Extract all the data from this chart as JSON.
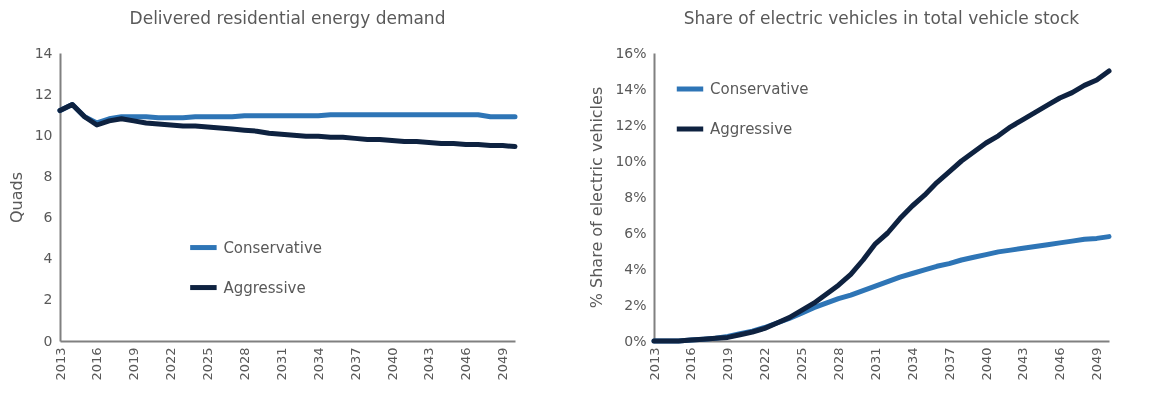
{
  "chart_data": [
    {
      "type": "line",
      "title": "Delivered residential energy demand",
      "ylabel": "Quads",
      "x": [
        2013,
        2014,
        2015,
        2016,
        2017,
        2018,
        2019,
        2020,
        2021,
        2022,
        2023,
        2024,
        2025,
        2026,
        2027,
        2028,
        2029,
        2030,
        2031,
        2032,
        2033,
        2034,
        2035,
        2036,
        2037,
        2038,
        2039,
        2040,
        2041,
        2042,
        2043,
        2044,
        2045,
        2046,
        2047,
        2048,
        2049,
        2050
      ],
      "series": [
        {
          "name": "Conservative",
          "color": "#2e75b6",
          "values": [
            11.2,
            11.5,
            10.9,
            10.6,
            10.8,
            10.9,
            10.9,
            10.9,
            10.85,
            10.85,
            10.85,
            10.9,
            10.9,
            10.9,
            10.9,
            10.95,
            10.95,
            10.95,
            10.95,
            10.95,
            10.95,
            10.95,
            11.0,
            11.0,
            11.0,
            11.0,
            11.0,
            11.0,
            11.0,
            11.0,
            11.0,
            11.0,
            11.0,
            11.0,
            11.0,
            10.9,
            10.9,
            10.9
          ]
        },
        {
          "name": "Aggressive",
          "color": "#0e2240",
          "values": [
            11.2,
            11.5,
            10.9,
            10.5,
            10.7,
            10.8,
            10.7,
            10.6,
            10.55,
            10.5,
            10.45,
            10.45,
            10.4,
            10.35,
            10.3,
            10.25,
            10.2,
            10.1,
            10.05,
            10.0,
            9.95,
            9.95,
            9.9,
            9.9,
            9.85,
            9.8,
            9.8,
            9.75,
            9.7,
            9.7,
            9.65,
            9.6,
            9.6,
            9.55,
            9.55,
            9.5,
            9.5,
            9.45
          ]
        }
      ],
      "xlim": [
        2013,
        2050
      ],
      "xticks": [
        2013,
        2016,
        2019,
        2022,
        2025,
        2028,
        2031,
        2034,
        2037,
        2040,
        2043,
        2046,
        2049
      ],
      "ylim": [
        0,
        14
      ],
      "yticks": [
        0,
        2,
        4,
        6,
        8,
        10,
        12,
        14
      ],
      "grid": false,
      "legend": "bottom",
      "marker": "none",
      "line_style": "solid"
    },
    {
      "type": "line",
      "title": "Share of electric vehicles in total vehicle stock",
      "ylabel": "% Share of electric vehicles",
      "x": [
        2013,
        2014,
        2015,
        2016,
        2017,
        2018,
        2019,
        2020,
        2021,
        2022,
        2023,
        2024,
        2025,
        2026,
        2027,
        2028,
        2029,
        2030,
        2031,
        2032,
        2033,
        2034,
        2035,
        2036,
        2037,
        2038,
        2039,
        2040,
        2041,
        2042,
        2043,
        2044,
        2045,
        2046,
        2047,
        2048,
        2049,
        2050
      ],
      "series": [
        {
          "name": "Conservative",
          "color": "#2e75b6",
          "values": [
            0,
            0,
            0,
            0.05,
            0.1,
            0.15,
            0.25,
            0.4,
            0.55,
            0.75,
            1.0,
            1.25,
            1.55,
            1.85,
            2.1,
            2.35,
            2.55,
            2.8,
            3.05,
            3.3,
            3.55,
            3.75,
            3.95,
            4.15,
            4.3,
            4.5,
            4.65,
            4.8,
            4.95,
            5.05,
            5.15,
            5.25,
            5.35,
            5.45,
            5.55,
            5.65,
            5.7,
            5.8
          ]
        },
        {
          "name": "Aggressive",
          "color": "#0e2240",
          "values": [
            0,
            0,
            0,
            0.05,
            0.1,
            0.15,
            0.2,
            0.35,
            0.5,
            0.7,
            1.0,
            1.3,
            1.7,
            2.1,
            2.6,
            3.1,
            3.7,
            4.5,
            5.4,
            6.0,
            6.8,
            7.5,
            8.1,
            8.8,
            9.4,
            10.0,
            10.5,
            11.0,
            11.4,
            11.9,
            12.3,
            12.7,
            13.1,
            13.5,
            13.8,
            14.2,
            14.5,
            15.0
          ]
        }
      ],
      "xlim": [
        2013,
        2050
      ],
      "xticks": [
        2013,
        2016,
        2019,
        2022,
        2025,
        2028,
        2031,
        2034,
        2037,
        2040,
        2043,
        2046,
        2049
      ],
      "ylim": [
        0,
        16
      ],
      "yticks": [
        {
          "value": 0,
          "label": "0%"
        },
        {
          "value": 2,
          "label": "2%"
        },
        {
          "value": 4,
          "label": "4%"
        },
        {
          "value": 6,
          "label": "6%"
        },
        {
          "value": 8,
          "label": "8%"
        },
        {
          "value": 10,
          "label": "10%"
        },
        {
          "value": 12,
          "label": "12%"
        },
        {
          "value": 14,
          "label": "14%"
        },
        {
          "value": 16,
          "label": "16%"
        }
      ],
      "grid": false,
      "legend": "top left",
      "marker": "none",
      "line_style": "solid"
    }
  ]
}
